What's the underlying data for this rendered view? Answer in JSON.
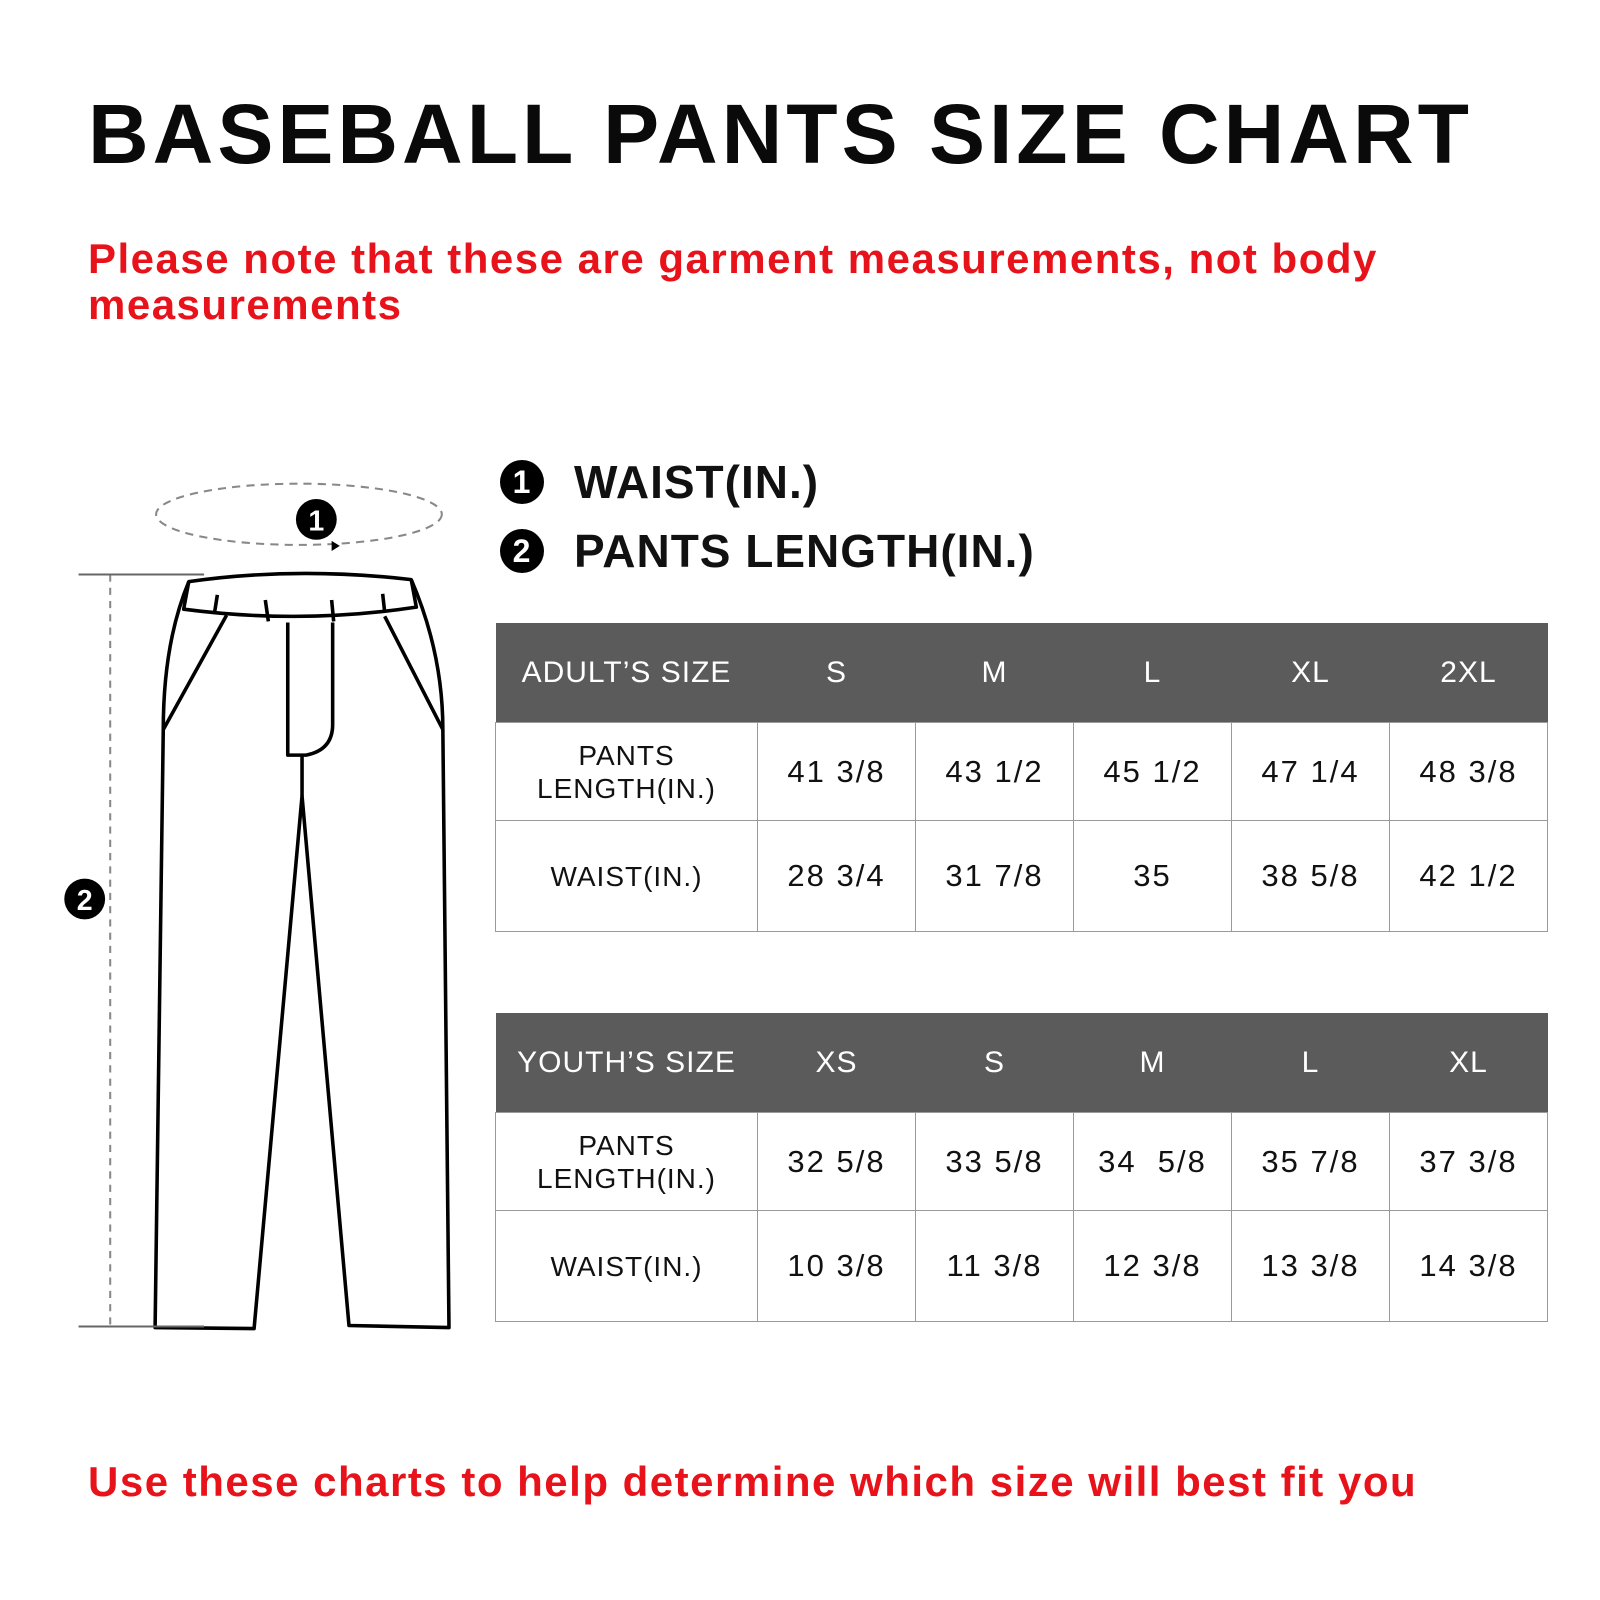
{
  "title": "BASEBALL PANTS SIZE CHART",
  "note": "Please note that these are garment measurements, not body measurements",
  "legend": [
    {
      "number": "1",
      "label": "WAIST(IN.)"
    },
    {
      "number": "2",
      "label": "PANTS LENGTH(IN.)"
    }
  ],
  "diagram": {
    "waist_marker": "1",
    "length_marker": "2"
  },
  "adult_table": {
    "header": [
      "ADULT’S SIZE",
      "S",
      "M",
      "L",
      "XL",
      "2XL"
    ],
    "rows": [
      {
        "label": "PANTS LENGTH(IN.)",
        "values": [
          "41 3/8",
          "43 1/2",
          "45 1/2",
          "47 1/4",
          "48 3/8"
        ]
      },
      {
        "label": "WAIST(IN.)",
        "values": [
          "28 3/4",
          "31 7/8",
          "35",
          "38 5/8",
          "42 1/2"
        ]
      }
    ]
  },
  "youth_table": {
    "header": [
      "YOUTH’S SIZE",
      "XS",
      "S",
      "M",
      "L",
      "XL"
    ],
    "rows": [
      {
        "label": "PANTS LENGTH(IN.)",
        "values": [
          "32 5/8",
          "33 5/8",
          "34  5/8",
          "35 7/8",
          "37 3/8"
        ]
      },
      {
        "label": "WAIST(IN.)",
        "values": [
          "10 3/8",
          "11 3/8",
          "12 3/8",
          "13 3/8",
          "14 3/8"
        ]
      }
    ]
  },
  "footer": "Use these charts to help determine which size will best fit you",
  "colors": {
    "accent_red": "#e8121a",
    "header_gray": "#5b5b5b"
  }
}
